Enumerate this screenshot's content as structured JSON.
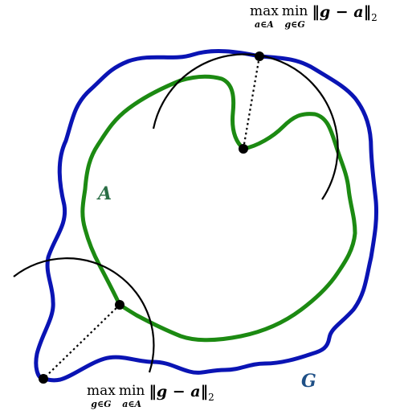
{
  "labels": {
    "set_a": "A",
    "set_g": "G"
  },
  "formula_top": {
    "op1": "max",
    "op1_sub": "a∈A",
    "op2": "min",
    "op2_sub": "g∈G",
    "norm": "‖g − a‖",
    "norm_sub": "2"
  },
  "formula_bottom": {
    "op1": "max",
    "op1_sub": "g∈G",
    "op2": "min",
    "op2_sub": "a∈A",
    "norm": "‖g − a‖",
    "norm_sub": "2"
  },
  "colors": {
    "set_g_curve": "#0a14b4",
    "set_a_curve": "#1c8a12",
    "circle_arc": "#000000",
    "point": "#000000",
    "label_a": "#2a6e45",
    "label_g": "#1e4f86"
  }
}
